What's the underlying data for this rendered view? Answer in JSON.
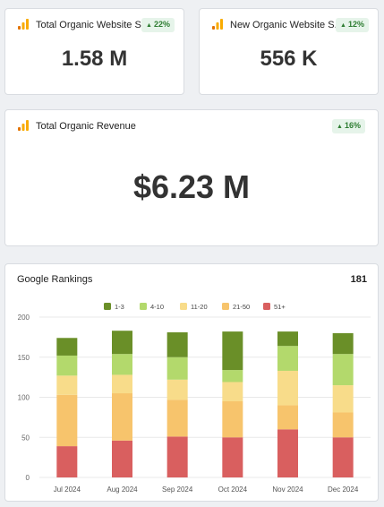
{
  "colors": {
    "badge_bg": "#e6f4ea",
    "badge_text": "#2e7d32",
    "ga_bar_light": "#f9ab00",
    "ga_bar_dark": "#e37400"
  },
  "cards": {
    "sessions": {
      "title": "Total Organic Website S...",
      "badge": "22%",
      "badge_direction": "up",
      "value": "1.58 M",
      "icon": "google-analytics-icon"
    },
    "new_sessions": {
      "title": "New Organic Website S...",
      "badge": "12%",
      "badge_direction": "up",
      "value": "556 K",
      "icon": "google-analytics-icon"
    },
    "revenue": {
      "title": "Total Organic Revenue",
      "badge": "16%",
      "badge_direction": "up",
      "value": "$6.23 M",
      "icon": "google-analytics-icon"
    }
  },
  "rankings": {
    "title": "Google Rankings",
    "total": "181"
  },
  "chart_data": {
    "type": "bar",
    "stacked": true,
    "categories": [
      "Jul 2024",
      "Aug 2024",
      "Sep 2024",
      "Oct 2024",
      "Nov 2024",
      "Dec 2024"
    ],
    "series": [
      {
        "name": "51+",
        "color": "#d95f5f",
        "values": [
          39,
          46,
          51,
          50,
          60,
          50
        ]
      },
      {
        "name": "21-50",
        "color": "#f7c46c",
        "values": [
          64,
          59,
          46,
          45,
          30,
          31
        ]
      },
      {
        "name": "11-20",
        "color": "#f8dc8a",
        "values": [
          24,
          23,
          25,
          24,
          43,
          34
        ]
      },
      {
        "name": "4-10",
        "color": "#b3d96c",
        "values": [
          25,
          26,
          28,
          15,
          31,
          39
        ]
      },
      {
        "name": "1-3",
        "color": "#6a8f28",
        "values": [
          22,
          29,
          31,
          48,
          18,
          26
        ]
      }
    ],
    "legend_order": [
      "1-3",
      "4-10",
      "11-20",
      "21-50",
      "51+"
    ],
    "ylim": [
      0,
      200
    ],
    "yticks": [
      0,
      50,
      100,
      150,
      200
    ],
    "grid": true,
    "legend_position": "top-center",
    "xlabel": "",
    "ylabel": ""
  }
}
